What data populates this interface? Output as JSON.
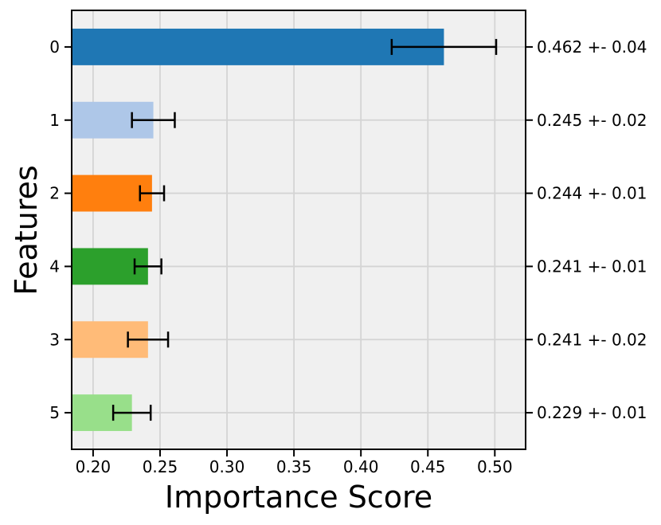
{
  "figure": {
    "background": "#ffffff",
    "plot_background": "#f0f0f0",
    "grid_color": "#d4d4d4",
    "spine_color": "#000000",
    "errorbar_color": "#000000",
    "text_color": "#000000"
  },
  "chart_data": {
    "type": "bar",
    "orientation": "horizontal",
    "title": "",
    "xlabel": "Importance Score",
    "ylabel": "Features",
    "categories": [
      "0",
      "1",
      "2",
      "4",
      "3",
      "5"
    ],
    "values": [
      0.462,
      0.245,
      0.244,
      0.241,
      0.241,
      0.229
    ],
    "errors": [
      0.039,
      0.016,
      0.009,
      0.01,
      0.015,
      0.014
    ],
    "value_labels": [
      "0.462 +- 0.04",
      "0.245 +- 0.02",
      "0.244 +- 0.01",
      "0.241 +- 0.01",
      "0.241 +- 0.02",
      "0.229 +- 0.01"
    ],
    "bar_colors": [
      "#1f77b4",
      "#aec7e8",
      "#ff7f0e",
      "#2ca02c",
      "#ffbb78",
      "#98df8a"
    ],
    "xlim": [
      0.184,
      0.523
    ],
    "xticks": [
      0.2,
      0.25,
      0.3,
      0.35,
      0.4,
      0.45,
      0.5
    ],
    "xtick_labels": [
      "0.20",
      "0.25",
      "0.30",
      "0.35",
      "0.40",
      "0.45",
      "0.50"
    ],
    "grid": true,
    "legend": false,
    "bar_height_fraction": 0.5
  }
}
